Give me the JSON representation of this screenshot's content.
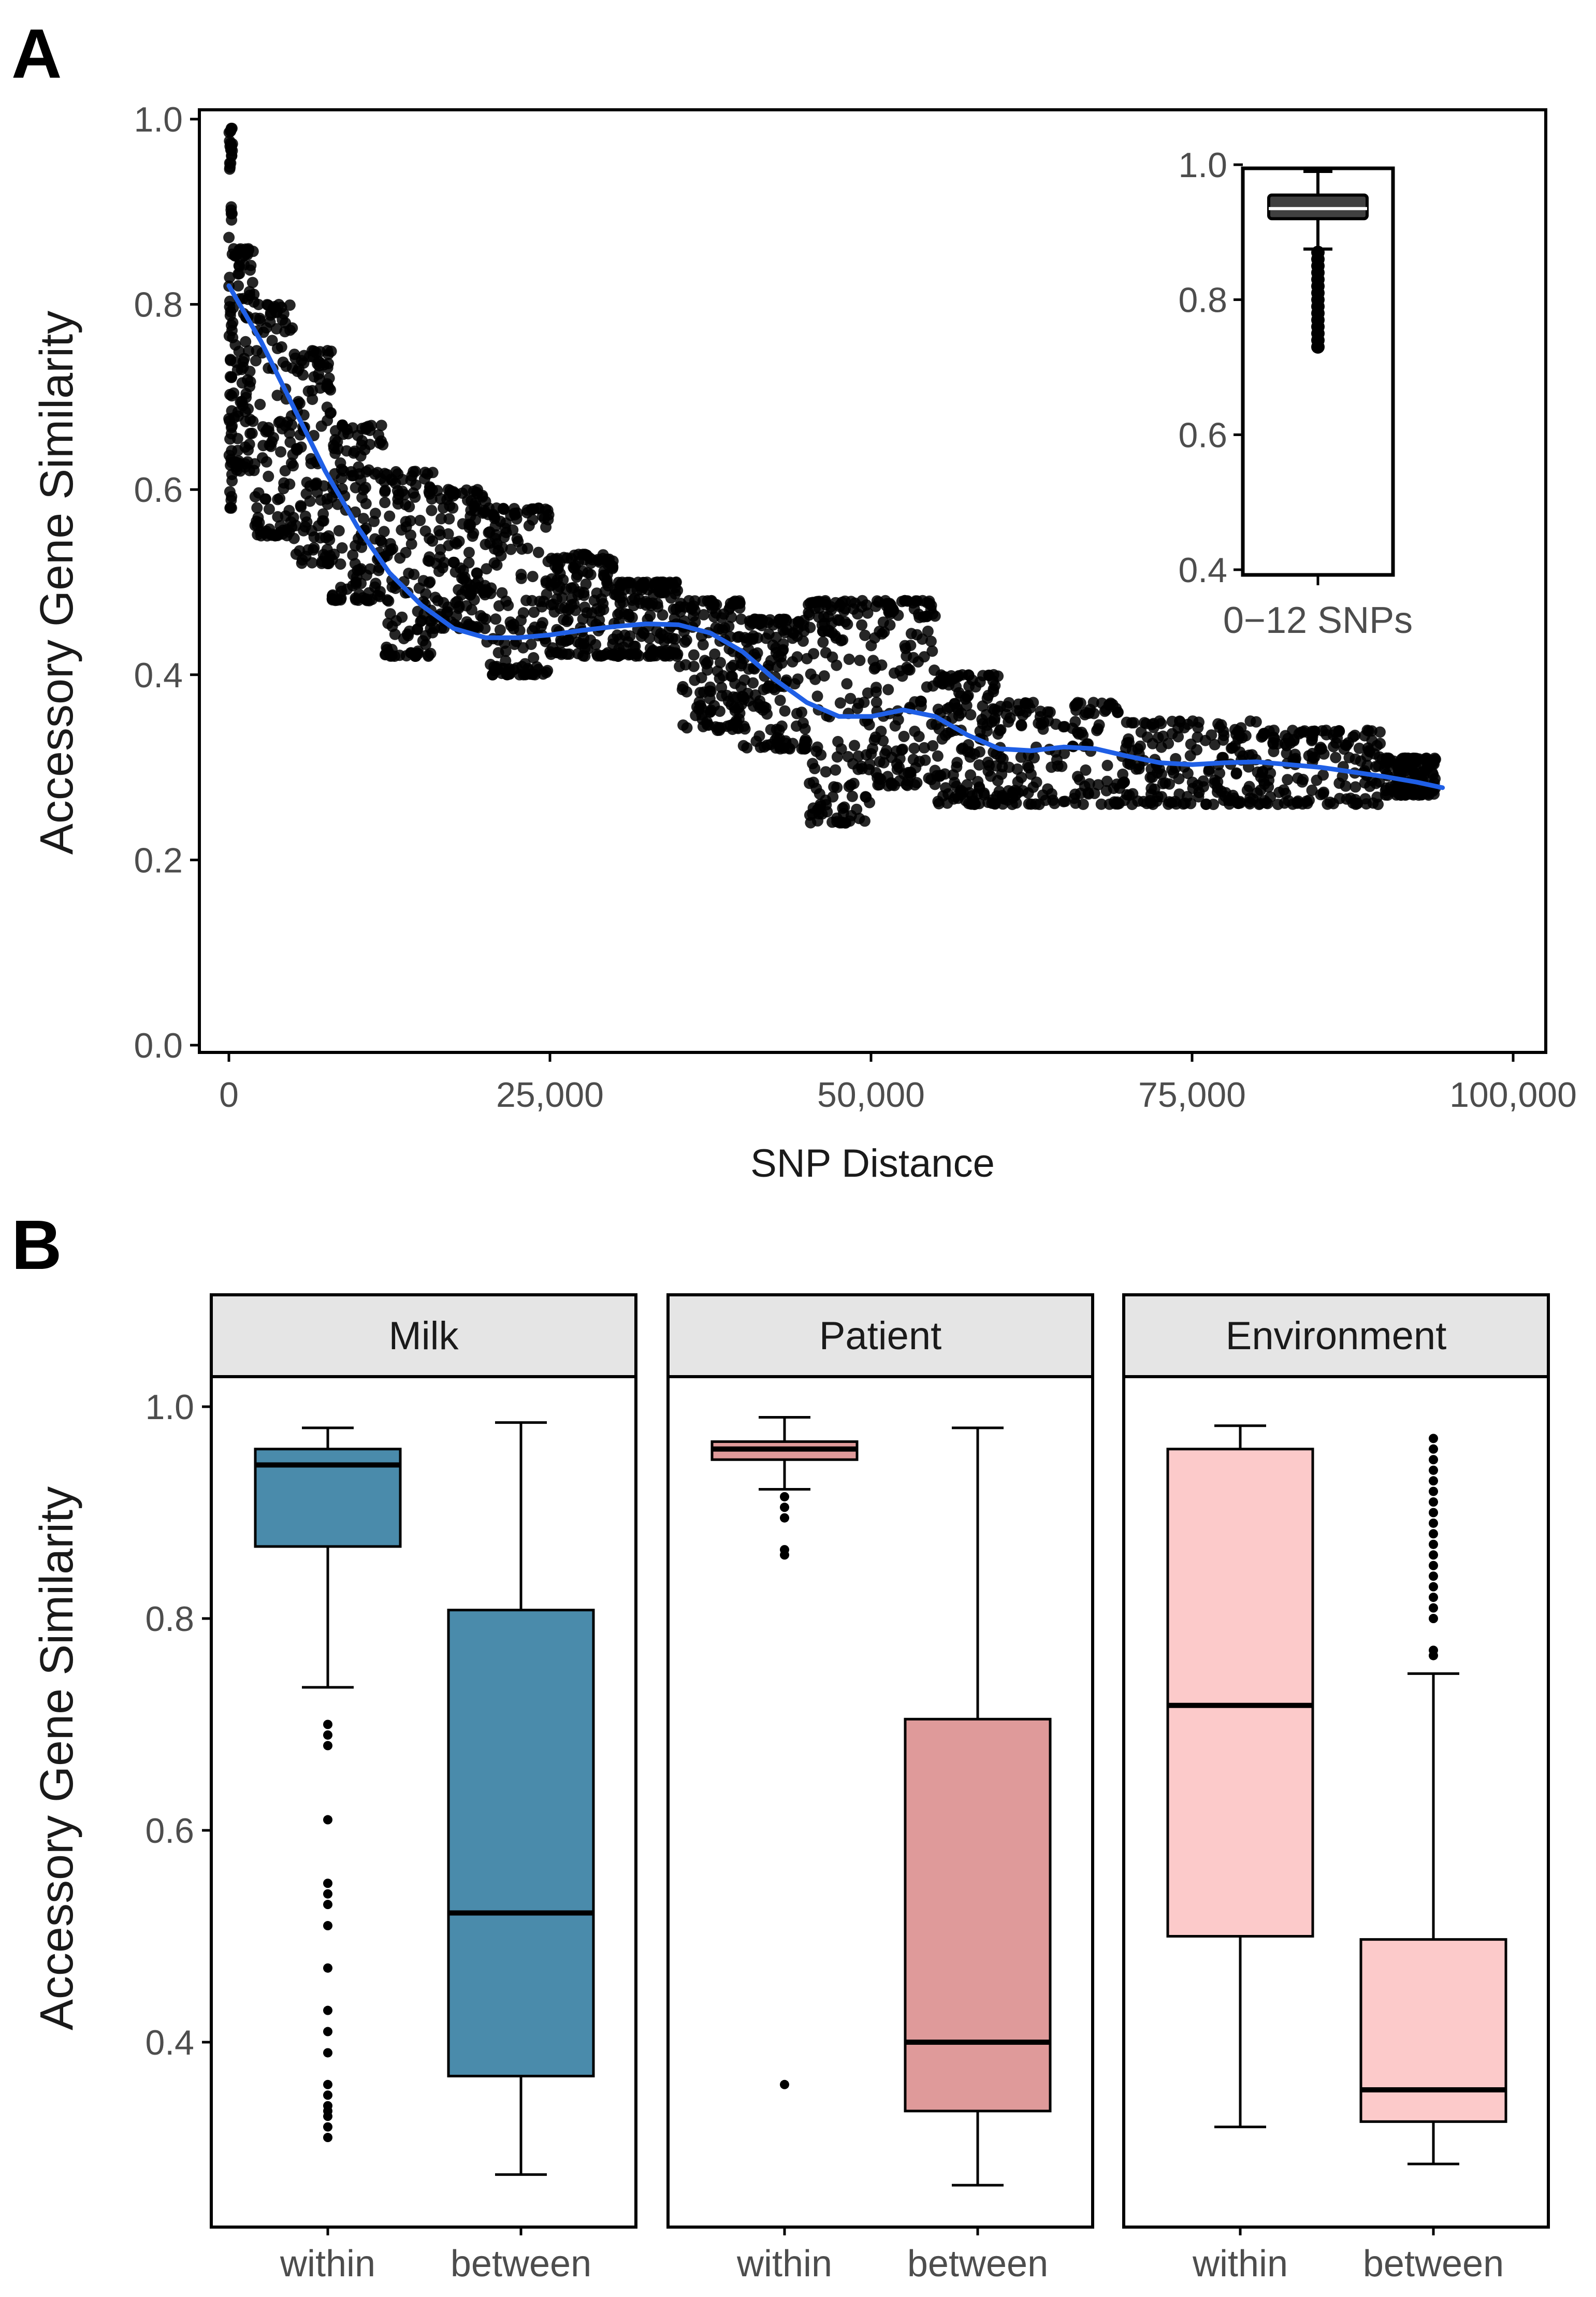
{
  "panel_labels": {
    "a": "A",
    "b": "B"
  },
  "chart_data": [
    {
      "type": "scatter",
      "panel": "A",
      "xlabel": "SNP Distance",
      "ylabel": "Accessory Gene Similarity",
      "xlim": [
        0,
        100000
      ],
      "ylim": [
        0.0,
        1.0
      ],
      "xticks": [
        0,
        25000,
        50000,
        75000,
        100000
      ],
      "xtick_labels": [
        "0",
        "25,000",
        "50,000",
        "75,000",
        "100,000"
      ],
      "yticks": [
        0.0,
        0.2,
        0.4,
        0.6,
        0.8,
        1.0
      ],
      "ytick_labels": [
        "0.0",
        "0.2",
        "0.4",
        "0.6",
        "0.8",
        "1.0"
      ],
      "grid": false,
      "point_color": "#000000",
      "point_clusters": [
        {
          "x": [
            0,
            300
          ],
          "y": [
            0.58,
            0.99
          ]
        },
        {
          "x": [
            300,
            2000
          ],
          "y": [
            0.62,
            0.86
          ]
        },
        {
          "x": [
            2000,
            5000
          ],
          "y": [
            0.55,
            0.8
          ]
        },
        {
          "x": [
            5000,
            8000
          ],
          "y": [
            0.52,
            0.75
          ]
        },
        {
          "x": [
            8000,
            12000
          ],
          "y": [
            0.48,
            0.67
          ]
        },
        {
          "x": [
            12000,
            16000
          ],
          "y": [
            0.42,
            0.62
          ]
        },
        {
          "x": [
            16000,
            20000
          ],
          "y": [
            0.45,
            0.6
          ]
        },
        {
          "x": [
            20000,
            25000
          ],
          "y": [
            0.4,
            0.58
          ]
        },
        {
          "x": [
            25000,
            30000
          ],
          "y": [
            0.42,
            0.53
          ]
        },
        {
          "x": [
            30000,
            35000
          ],
          "y": [
            0.42,
            0.5
          ]
        },
        {
          "x": [
            35000,
            40000
          ],
          "y": [
            0.34,
            0.48
          ]
        },
        {
          "x": [
            40000,
            45000
          ],
          "y": [
            0.32,
            0.46
          ]
        },
        {
          "x": [
            45000,
            50000
          ],
          "y": [
            0.24,
            0.48
          ]
        },
        {
          "x": [
            50000,
            55000
          ],
          "y": [
            0.28,
            0.48
          ]
        },
        {
          "x": [
            55000,
            60000
          ],
          "y": [
            0.26,
            0.4
          ]
        },
        {
          "x": [
            60000,
            70000
          ],
          "y": [
            0.26,
            0.37
          ]
        },
        {
          "x": [
            70000,
            80000
          ],
          "y": [
            0.26,
            0.35
          ]
        },
        {
          "x": [
            80000,
            90000
          ],
          "y": [
            0.26,
            0.34
          ]
        },
        {
          "x": [
            90000,
            94000
          ],
          "y": [
            0.27,
            0.31
          ]
        }
      ],
      "trend_line": {
        "color": "#1f5fe6",
        "x": [
          0,
          2500,
          5000,
          7500,
          10000,
          12500,
          15000,
          17500,
          20000,
          22500,
          25000,
          27500,
          30000,
          32500,
          35000,
          37500,
          40000,
          42500,
          45000,
          47500,
          50000,
          52500,
          55000,
          57500,
          60000,
          62500,
          65000,
          67500,
          70000,
          72500,
          75000,
          77500,
          80000,
          82500,
          85000,
          87500,
          90000,
          92500,
          94500
        ],
        "y": [
          0.82,
          0.76,
          0.69,
          0.62,
          0.56,
          0.51,
          0.475,
          0.45,
          0.44,
          0.44,
          0.443,
          0.448,
          0.452,
          0.455,
          0.454,
          0.445,
          0.425,
          0.395,
          0.37,
          0.355,
          0.355,
          0.362,
          0.355,
          0.335,
          0.32,
          0.318,
          0.322,
          0.32,
          0.312,
          0.305,
          0.303,
          0.305,
          0.306,
          0.303,
          0.3,
          0.295,
          0.29,
          0.284,
          0.278
        ]
      },
      "inset": {
        "type": "box",
        "category_label": "0−12 SNPs",
        "ylim": [
          0.4,
          1.0
        ],
        "yticks": [
          0.4,
          0.6,
          0.8,
          1.0
        ],
        "ytick_labels": [
          "0.4",
          "0.6",
          "0.8",
          "1.0"
        ],
        "box": {
          "q1": 0.92,
          "median": 0.935,
          "q3": 0.955,
          "whisker_low": 0.875,
          "whisker_high": 0.99
        },
        "outliers": [
          0.87,
          0.86,
          0.85,
          0.84,
          0.83,
          0.82,
          0.81,
          0.8,
          0.79,
          0.78,
          0.77,
          0.76,
          0.75,
          0.74,
          0.73
        ],
        "fill": "#404040"
      }
    },
    {
      "type": "box",
      "panel": "B",
      "ylabel": "Accessory Gene Similarity",
      "ylim": [
        0.26,
        1.08
      ],
      "yticks": [
        0.4,
        0.6,
        0.8,
        1.0
      ],
      "ytick_labels": [
        "0.4",
        "0.6",
        "0.8",
        "1.0"
      ],
      "categories": [
        "within",
        "between"
      ],
      "facets": [
        {
          "name": "Milk",
          "boxes": [
            {
              "category": "within",
              "fill": "#4a8bab",
              "q1": 0.868,
              "median": 0.945,
              "q3": 0.96,
              "whisker_low": 0.735,
              "whisker_high": 0.98,
              "outliers": [
                0.7,
                0.69,
                0.68,
                0.61,
                0.55,
                0.54,
                0.53,
                0.51,
                0.47,
                0.43,
                0.41,
                0.39,
                0.36,
                0.35,
                0.34,
                0.335,
                0.33,
                0.32,
                0.31
              ]
            },
            {
              "category": "between",
              "fill": "#4a8bab",
              "q1": 0.368,
              "median": 0.522,
              "q3": 0.808,
              "whisker_low": 0.275,
              "whisker_high": 0.985,
              "outliers": []
            }
          ]
        },
        {
          "name": "Patient",
          "boxes": [
            {
              "category": "within",
              "fill": "#df9a9a",
              "q1": 0.95,
              "median": 0.96,
              "q3": 0.967,
              "whisker_low": 0.922,
              "whisker_high": 0.99,
              "outliers": [
                0.915,
                0.905,
                0.895,
                0.865,
                0.86,
                0.36
              ]
            },
            {
              "category": "between",
              "fill": "#df9a9a",
              "q1": 0.335,
              "median": 0.4,
              "q3": 0.705,
              "whisker_low": 0.265,
              "whisker_high": 0.98,
              "outliers": []
            }
          ]
        },
        {
          "name": "Environment",
          "boxes": [
            {
              "category": "within",
              "fill": "#fccaca",
              "q1": 0.5,
              "median": 0.718,
              "q3": 0.96,
              "whisker_low": 0.32,
              "whisker_high": 0.982,
              "outliers": []
            },
            {
              "category": "between",
              "fill": "#fccaca",
              "q1": 0.325,
              "median": 0.355,
              "q3": 0.497,
              "whisker_low": 0.285,
              "whisker_high": 0.748,
              "outliers": [
                0.765,
                0.77,
                0.8,
                0.81,
                0.82,
                0.83,
                0.84,
                0.85,
                0.86,
                0.87,
                0.88,
                0.89,
                0.9,
                0.91,
                0.92,
                0.93,
                0.94,
                0.95,
                0.96,
                0.97
              ]
            }
          ]
        }
      ]
    }
  ]
}
